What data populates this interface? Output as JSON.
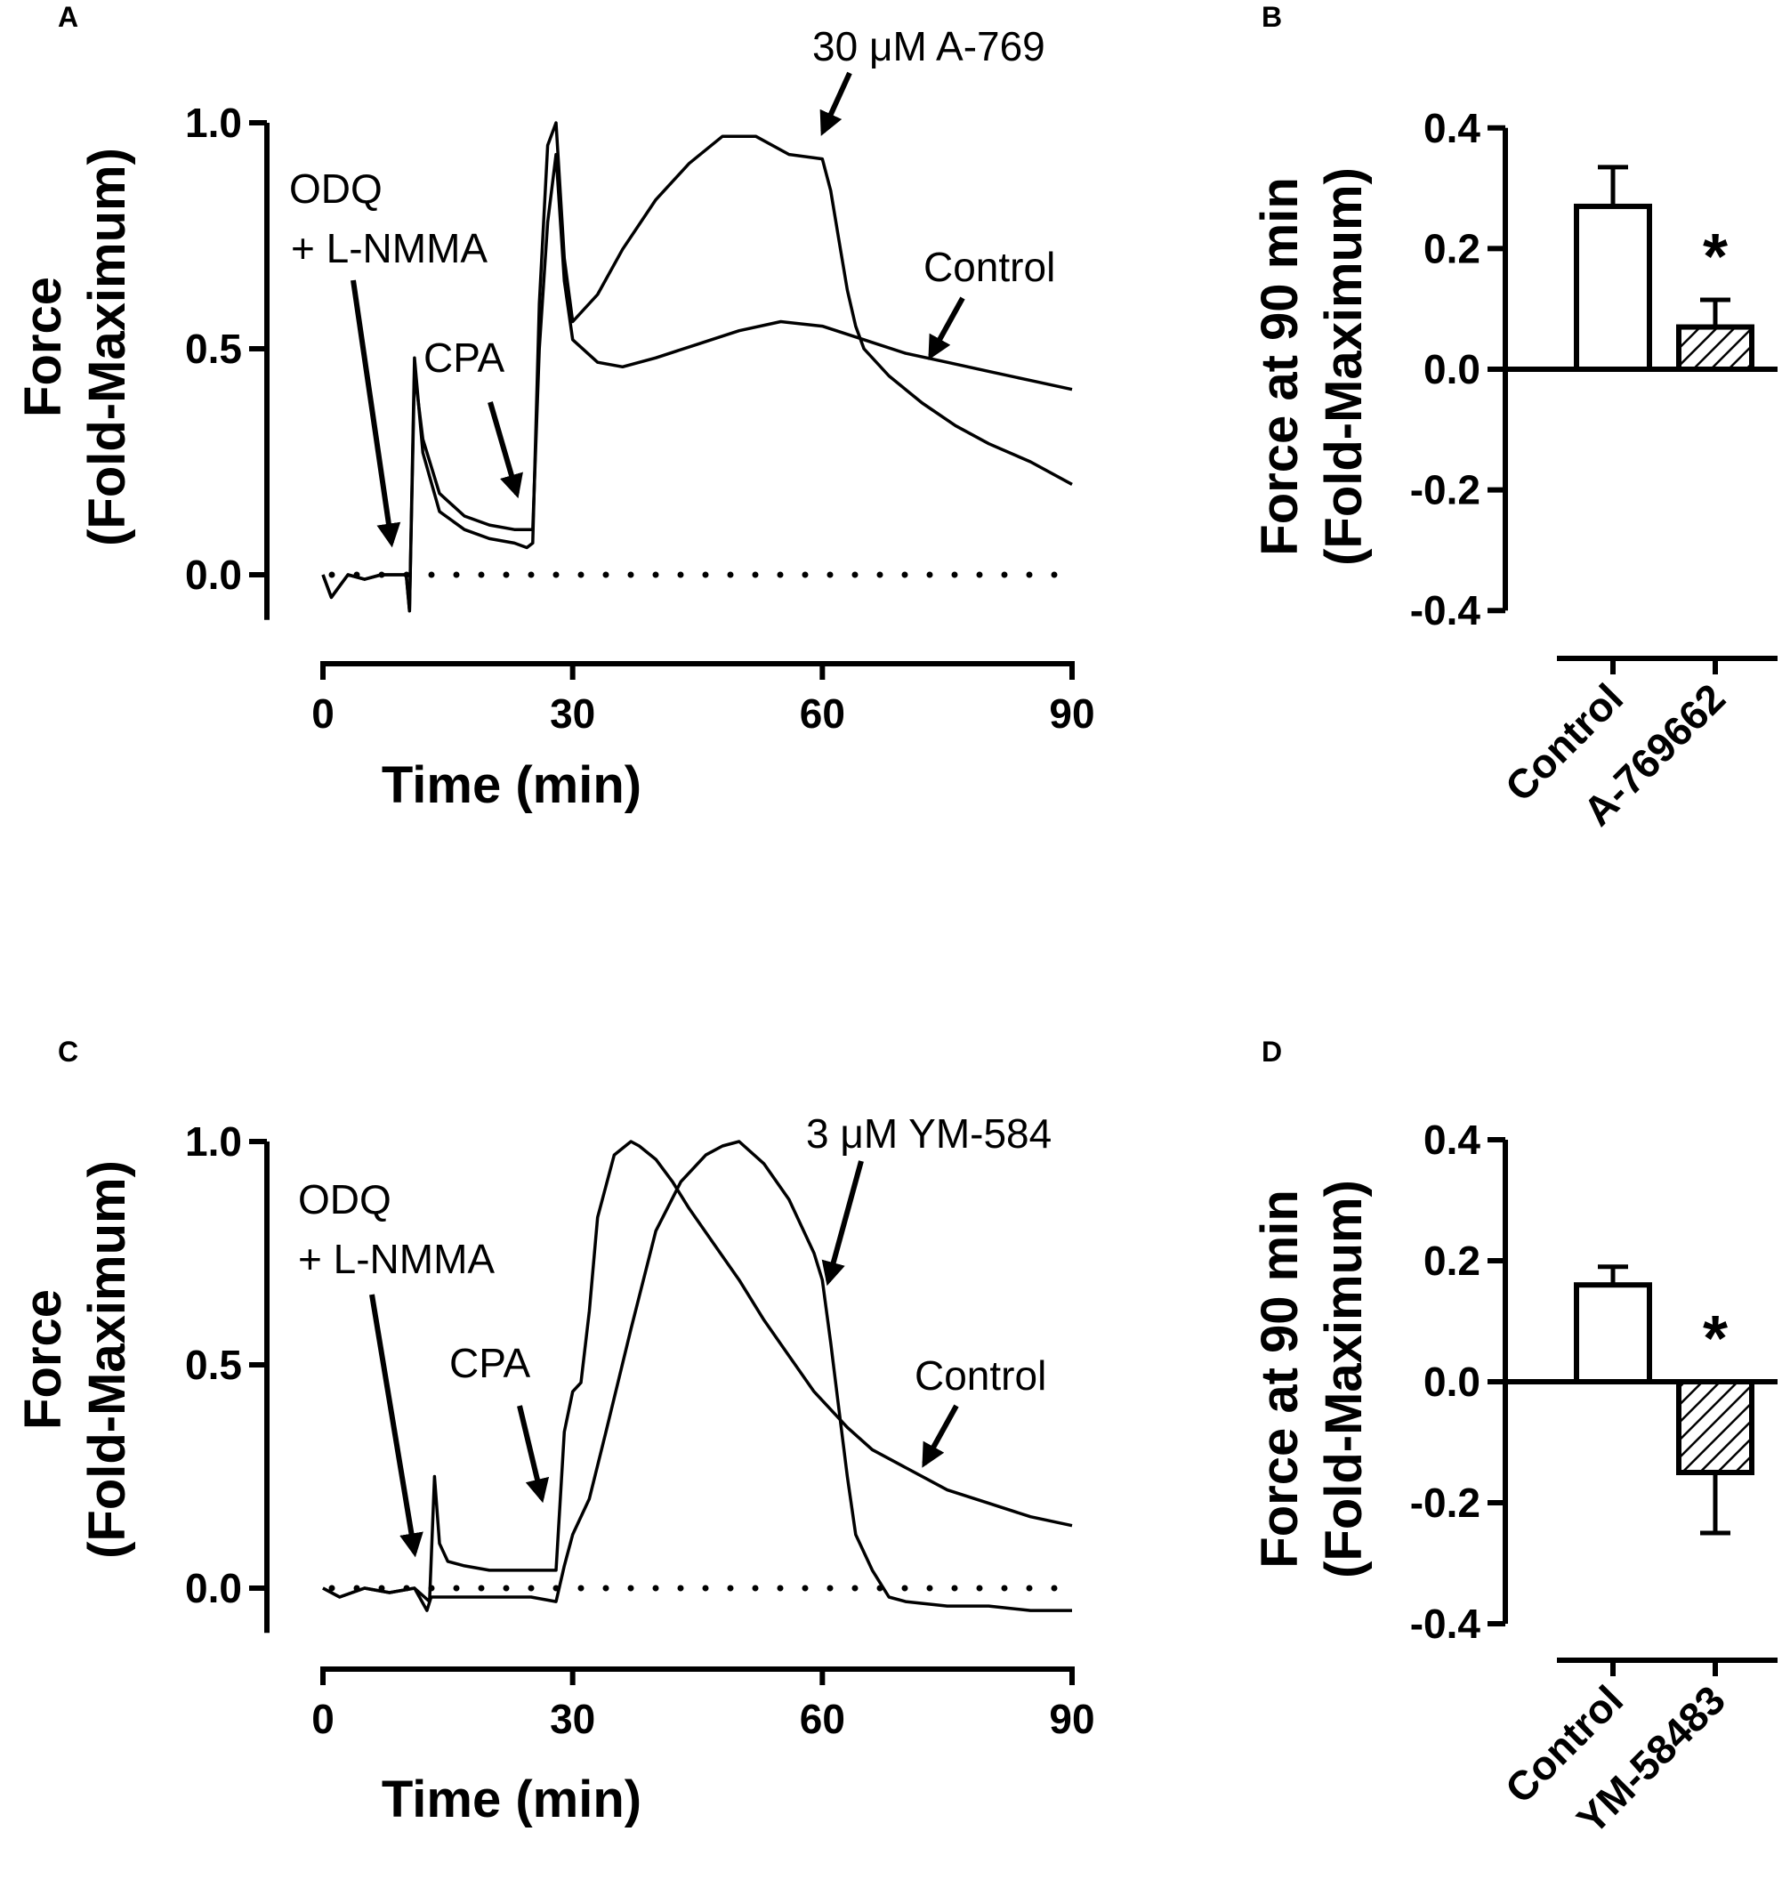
{
  "chart_data": [
    {
      "panel": "A",
      "type": "line",
      "xlabel": "Time (min)",
      "ylabel_line1": "Force",
      "ylabel_line2": "(Fold-Maximum)",
      "xlim": [
        0,
        90
      ],
      "ylim": [
        -0.1,
        1.0
      ],
      "xticks": [
        0,
        30,
        60,
        90
      ],
      "yticks": [
        "1.0",
        "0.5",
        "0.0"
      ],
      "yticks_values": [
        1.0,
        0.5,
        0.0
      ],
      "baseline": 0.0,
      "series": [
        {
          "name": "Control",
          "x": [
            0,
            1,
            3,
            5,
            7,
            9,
            10,
            10.4,
            11,
            12,
            14,
            17,
            20,
            23,
            24.5,
            25.2,
            26,
            27,
            28,
            29,
            30,
            33,
            36,
            40,
            45,
            50,
            55,
            60,
            65,
            70,
            75,
            80,
            85,
            90
          ],
          "y": [
            0,
            -0.05,
            0,
            -0.01,
            0,
            0,
            0.0,
            -0.08,
            0.45,
            0.3,
            0.18,
            0.13,
            0.11,
            0.1,
            0.1,
            0.1,
            0.5,
            0.78,
            0.93,
            0.65,
            0.52,
            0.47,
            0.46,
            0.48,
            0.51,
            0.54,
            0.56,
            0.55,
            0.52,
            0.49,
            0.47,
            0.45,
            0.43,
            0.41
          ]
        },
        {
          "name": "30 μM A-769",
          "x": [
            0,
            1,
            3,
            5,
            7,
            9,
            10,
            10.4,
            11,
            12,
            14,
            17,
            20,
            23,
            24.5,
            25.2,
            26,
            27,
            28,
            29,
            30,
            33,
            36,
            40,
            44,
            48,
            52,
            56,
            60,
            61,
            62,
            63,
            64,
            65,
            68,
            72,
            76,
            80,
            85,
            90
          ],
          "y": [
            0,
            -0.05,
            0,
            -0.01,
            0,
            0,
            0.0,
            -0.08,
            0.48,
            0.27,
            0.14,
            0.1,
            0.08,
            0.07,
            0.06,
            0.07,
            0.6,
            0.95,
            1.0,
            0.7,
            0.56,
            0.62,
            0.72,
            0.83,
            0.91,
            0.97,
            0.97,
            0.93,
            0.92,
            0.85,
            0.74,
            0.63,
            0.55,
            0.5,
            0.44,
            0.38,
            0.33,
            0.29,
            0.25,
            0.2
          ]
        }
      ],
      "annotations": {
        "odq_line1": "ODQ",
        "odq_line2": "+ L-NMMA",
        "cpa": "CPA",
        "drug": "30 μM A-769",
        "control": "Control"
      }
    },
    {
      "panel": "B",
      "type": "bar",
      "ylabel_line1": "Force at 90 min",
      "ylabel_line2": "(Fold-Maximum)",
      "ylim": [
        -0.4,
        0.4
      ],
      "yticks": [
        "0.4",
        "0.2",
        "0.0",
        "-0.2",
        "-0.4"
      ],
      "yticks_values": [
        0.4,
        0.2,
        0.0,
        -0.2,
        -0.4
      ],
      "categories": [
        "Control",
        "A-769662"
      ],
      "values": [
        0.27,
        0.07
      ],
      "errors": [
        0.065,
        0.045
      ],
      "fills": [
        "open",
        "hatched"
      ],
      "significance": [
        "",
        "*"
      ]
    },
    {
      "panel": "C",
      "type": "line",
      "xlabel": "Time (min)",
      "ylabel_line1": "Force",
      "ylabel_line2": "(Fold-Maximum)",
      "xlim": [
        0,
        90
      ],
      "ylim": [
        -0.1,
        1.0
      ],
      "xticks": [
        0,
        30,
        60,
        90
      ],
      "yticks": [
        "1.0",
        "0.5",
        "0.0"
      ],
      "yticks_values": [
        1.0,
        0.5,
        0.0
      ],
      "baseline": 0.0,
      "series": [
        {
          "name": "Control",
          "x": [
            0,
            2,
            5,
            8,
            11,
            12.8,
            13.4,
            14,
            15,
            17,
            20,
            24,
            28,
            29,
            30,
            31,
            32,
            33,
            35,
            37,
            38,
            40,
            42,
            44,
            47,
            50,
            53,
            56,
            59,
            61,
            63,
            66,
            70,
            75,
            80,
            85,
            90
          ],
          "y": [
            0,
            -0.02,
            0,
            -0.01,
            0,
            -0.03,
            0.25,
            0.1,
            0.06,
            0.05,
            0.04,
            0.04,
            0.04,
            0.35,
            0.44,
            0.46,
            0.62,
            0.83,
            0.97,
            1.0,
            0.99,
            0.96,
            0.91,
            0.85,
            0.77,
            0.69,
            0.6,
            0.52,
            0.44,
            0.4,
            0.36,
            0.31,
            0.27,
            0.22,
            0.19,
            0.16,
            0.14
          ]
        },
        {
          "name": "3 μM YM-584",
          "x": [
            0,
            2,
            5,
            8,
            11,
            12.5,
            13,
            14,
            16,
            20,
            25,
            28,
            29,
            30,
            32,
            34,
            37,
            40,
            43,
            46,
            48,
            50,
            53,
            56,
            59,
            60,
            61,
            62,
            63,
            64,
            66,
            68,
            70,
            75,
            80,
            85,
            90
          ],
          "y": [
            0,
            -0.02,
            0,
            -0.01,
            0,
            -0.05,
            -0.02,
            -0.02,
            -0.02,
            -0.02,
            -0.02,
            -0.03,
            0.05,
            0.12,
            0.2,
            0.35,
            0.58,
            0.8,
            0.91,
            0.97,
            0.99,
            1.0,
            0.95,
            0.87,
            0.75,
            0.69,
            0.55,
            0.4,
            0.25,
            0.12,
            0.04,
            -0.02,
            -0.03,
            -0.04,
            -0.04,
            -0.05,
            -0.05
          ]
        }
      ],
      "annotations": {
        "odq_line1": "ODQ",
        "odq_line2": "+ L-NMMA",
        "cpa": "CPA",
        "drug": "3 μM YM-584",
        "control": "Control"
      }
    },
    {
      "panel": "D",
      "type": "bar",
      "ylabel_line1": "Force at 90 min",
      "ylabel_line2": "(Fold-Maximum)",
      "ylim": [
        -0.4,
        0.4
      ],
      "yticks": [
        "0.4",
        "0.2",
        "0.0",
        "-0.2",
        "-0.4"
      ],
      "yticks_values": [
        0.4,
        0.2,
        0.0,
        -0.2,
        -0.4
      ],
      "categories": [
        "Control",
        "YM-58483"
      ],
      "values": [
        0.16,
        -0.15
      ],
      "errors": [
        0.03,
        0.1
      ],
      "fills": [
        "open",
        "hatched"
      ],
      "significance": [
        "",
        "*"
      ]
    }
  ]
}
